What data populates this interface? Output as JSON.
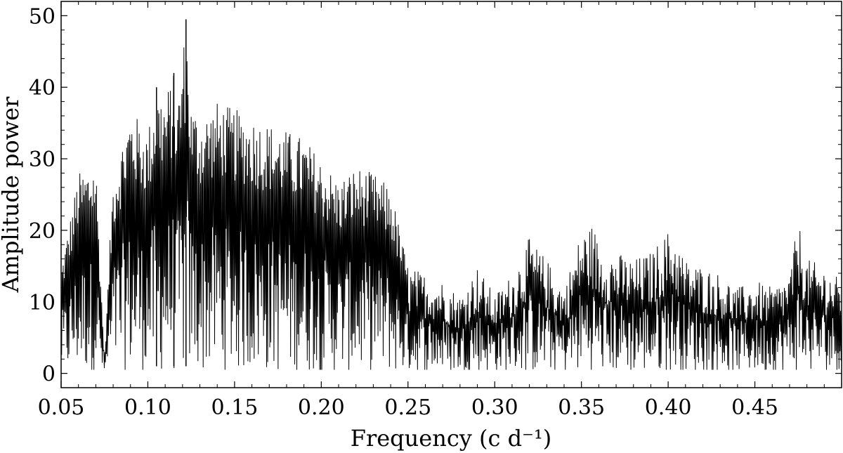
{
  "chart_data": {
    "type": "line",
    "title": "",
    "xlabel": "Frequency (c d⁻¹)",
    "ylabel": "Amplitude power",
    "xlim": [
      0.05,
      0.5
    ],
    "ylim": [
      -2,
      52
    ],
    "x_ticks": [
      0.05,
      0.1,
      0.15,
      0.2,
      0.25,
      0.3,
      0.35,
      0.4,
      0.45
    ],
    "x_tick_labels": [
      "0.05",
      "0.10",
      "0.15",
      "0.20",
      "0.25",
      "0.30",
      "0.35",
      "0.40",
      "0.45"
    ],
    "y_ticks": [
      0,
      10,
      20,
      30,
      40,
      50
    ],
    "y_tick_labels": [
      "0",
      "10",
      "20",
      "30",
      "40",
      "50"
    ],
    "grid": false,
    "line_color": "#000000",
    "series": [
      {
        "x": [
          0.05,
          0.06,
          0.07,
          0.075,
          0.08,
          0.09,
          0.1,
          0.105,
          0.11,
          0.115,
          0.117,
          0.122,
          0.125,
          0.13,
          0.14,
          0.15,
          0.16,
          0.17,
          0.18,
          0.19,
          0.2,
          0.21,
          0.22,
          0.23,
          0.24,
          0.25,
          0.26,
          0.27,
          0.28,
          0.29,
          0.3,
          0.31,
          0.32,
          0.33,
          0.34,
          0.35,
          0.357,
          0.36,
          0.37,
          0.38,
          0.39,
          0.4,
          0.403,
          0.41,
          0.42,
          0.43,
          0.44,
          0.45,
          0.46,
          0.47,
          0.475,
          0.48,
          0.49,
          0.5
        ],
        "y": [
          15,
          28,
          30,
          2,
          28,
          37,
          34,
          40,
          39,
          42,
          38,
          49.5,
          38,
          36,
          38,
          37,
          36,
          35,
          34,
          33,
          30,
          27,
          29,
          28,
          26,
          15,
          14,
          13,
          11,
          15,
          11,
          14,
          19,
          16,
          12,
          20,
          21,
          18,
          17,
          16,
          17,
          20,
          20,
          16,
          15,
          14,
          12,
          13,
          12,
          14,
          21.5,
          16,
          15,
          13
        ]
      }
    ]
  }
}
